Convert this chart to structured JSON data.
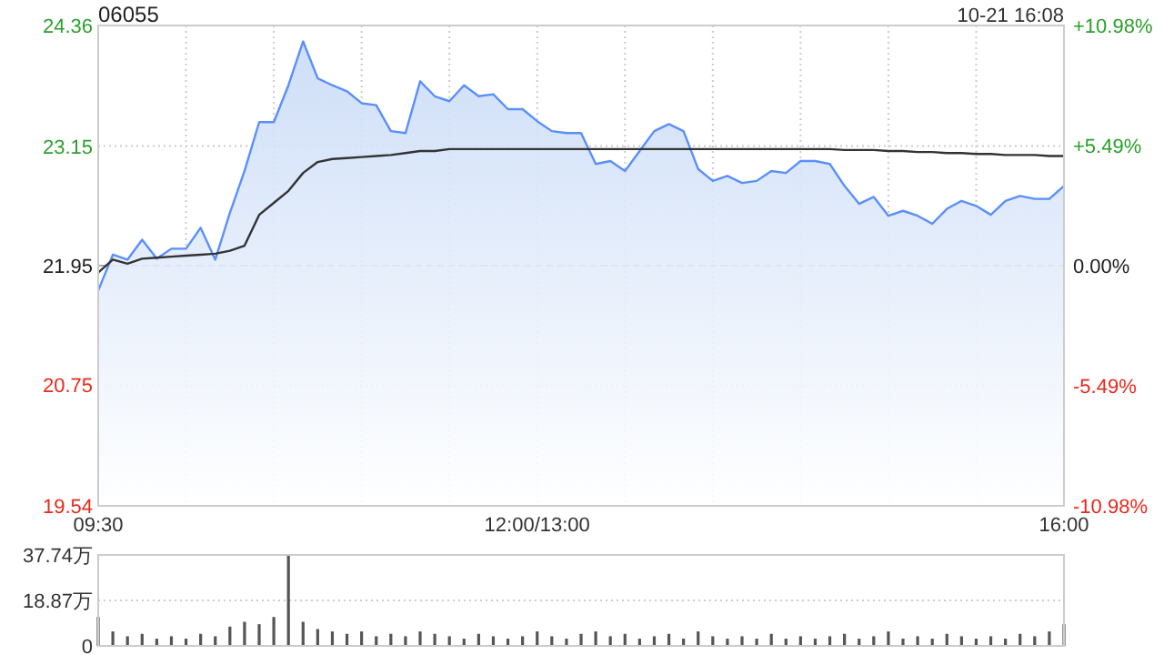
{
  "chart_data": [
    {
      "type": "line",
      "title": "06055",
      "subtitle": "10-21 16:08",
      "categories": [
        "09:30",
        null,
        null,
        null,
        null,
        null,
        null,
        null,
        null,
        null,
        null,
        null,
        null,
        null,
        null,
        null,
        null,
        null,
        null,
        null,
        null,
        null,
        null,
        null,
        null,
        null,
        null,
        null,
        null,
        null,
        "12:00/13:00",
        null,
        null,
        null,
        null,
        null,
        null,
        null,
        null,
        null,
        null,
        null,
        null,
        null,
        null,
        null,
        null,
        null,
        null,
        null,
        null,
        null,
        null,
        null,
        null,
        null,
        null,
        null,
        null,
        null,
        null,
        null,
        null,
        null,
        null,
        null,
        "16:00"
      ],
      "series": [
        {
          "type": "area",
          "color": "#5b8ff9",
          "values": [
            21.7,
            22.06,
            22.01,
            22.21,
            22.02,
            22.12,
            22.12,
            22.33,
            22.01,
            22.48,
            22.9,
            23.39,
            23.39,
            23.76,
            24.2,
            23.83,
            23.76,
            23.7,
            23.58,
            23.56,
            23.3,
            23.28,
            23.8,
            23.65,
            23.6,
            23.76,
            23.65,
            23.67,
            23.52,
            23.52,
            23.4,
            23.3,
            23.28,
            23.28,
            22.97,
            23.0,
            22.9,
            23.1,
            23.3,
            23.37,
            23.3,
            22.92,
            22.8,
            22.85,
            22.78,
            22.8,
            22.9,
            22.88,
            23.0,
            23.0,
            22.97,
            22.75,
            22.57,
            22.64,
            22.45,
            22.5,
            22.45,
            22.37,
            22.52,
            22.6,
            22.55,
            22.46,
            22.6,
            22.65,
            22.62,
            22.62,
            22.75
          ]
        },
        {
          "type": "line",
          "color": "#333333",
          "values": [
            21.88,
            22.01,
            21.97,
            22.02,
            22.03,
            22.04,
            22.05,
            22.06,
            22.07,
            22.1,
            22.15,
            22.46,
            22.58,
            22.7,
            22.88,
            22.99,
            23.02,
            23.03,
            23.04,
            23.05,
            23.06,
            23.08,
            23.1,
            23.1,
            23.12,
            23.12,
            23.12,
            23.12,
            23.12,
            23.12,
            23.12,
            23.12,
            23.12,
            23.12,
            23.12,
            23.12,
            23.12,
            23.12,
            23.12,
            23.12,
            23.12,
            23.12,
            23.12,
            23.12,
            23.12,
            23.12,
            23.12,
            23.12,
            23.12,
            23.12,
            23.12,
            23.11,
            23.11,
            23.11,
            23.1,
            23.1,
            23.09,
            23.09,
            23.08,
            23.08,
            23.07,
            23.07,
            23.06,
            23.06,
            23.06,
            23.05,
            23.05
          ]
        }
      ],
      "ylim": [
        19.54,
        24.36
      ],
      "yticks": [
        19.54,
        20.75,
        21.95,
        23.15,
        24.36
      ],
      "y2lim": [
        -10.98,
        10.98
      ],
      "y2ticks": [
        {
          "value": -10.98,
          "label": "-10.98%"
        },
        {
          "value": -5.49,
          "label": "-5.49%"
        },
        {
          "value": 0,
          "label": "0.00%"
        },
        {
          "value": 5.49,
          "label": "+5.49%"
        },
        {
          "value": 10.98,
          "label": "+10.98%"
        }
      ],
      "ref_lines": [
        {
          "axis": "y",
          "value": 21.95,
          "line_style": "dashed",
          "color": "#aaaaaa"
        }
      ],
      "grid": true
    },
    {
      "type": "bar",
      "color": "#555555",
      "categories": [
        null,
        null,
        null,
        null,
        null,
        null,
        null,
        null,
        null,
        null,
        null,
        null,
        null,
        null,
        null,
        null,
        null,
        null,
        null,
        null,
        null,
        null,
        null,
        null,
        null,
        null,
        null,
        null,
        null,
        null,
        null,
        null,
        null,
        null,
        null,
        null,
        null,
        null,
        null,
        null,
        null,
        null,
        null,
        null,
        null,
        null,
        null,
        null,
        null,
        null,
        null,
        null,
        null,
        null,
        null,
        null,
        null,
        null,
        null,
        null,
        null,
        null,
        null,
        null,
        null,
        null,
        null
      ],
      "values": [
        12,
        6,
        4,
        5,
        3,
        4,
        3,
        5,
        4,
        8,
        10,
        9,
        12,
        37.7,
        10,
        7,
        6,
        5,
        6,
        4,
        5,
        4,
        6,
        5,
        4,
        3,
        5,
        4,
        3,
        4,
        6,
        4,
        3,
        5,
        6,
        4,
        5,
        3,
        4,
        5,
        3,
        6,
        4,
        3,
        4,
        3,
        5,
        3,
        4,
        3,
        4,
        5,
        3,
        4,
        6,
        3,
        4,
        3,
        5,
        4,
        3,
        4,
        3,
        5,
        4,
        6,
        9
      ],
      "ylim": [
        0,
        37.74
      ],
      "yticks": [
        0,
        {
          "value": 18.87,
          "label": "18.87万"
        },
        {
          "value": 37.74,
          "label": "37.74万"
        }
      ],
      "grid": "y",
      "tick_labels": "y"
    }
  ]
}
